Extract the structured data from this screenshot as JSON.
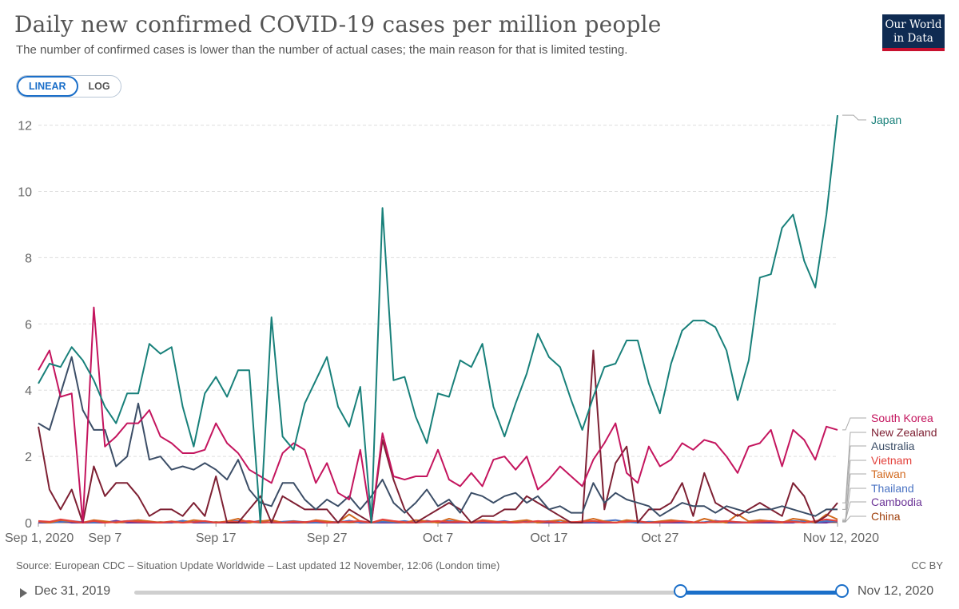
{
  "header": {
    "title": "Daily new confirmed COVID-19 cases per million people",
    "subtitle": "The number of confirmed cases is lower than the number of actual cases; the main reason for that is limited testing.",
    "logo_line1": "Our World",
    "logo_line2": "in Data"
  },
  "scale_toggle": {
    "linear_label": "LINEAR",
    "log_label": "LOG",
    "selected": "LINEAR"
  },
  "footer": {
    "source": "Source: European CDC – Situation Update Worldwide – Last updated 12 November, 12:06 (London time)",
    "license": "CC BY"
  },
  "timeline": {
    "start_label": "Dec 31, 2019",
    "end_label": "Nov 12, 2020"
  },
  "colors": {
    "Japan": "#18807a",
    "South Korea": "#c4155e",
    "New Zealand": "#7e2033",
    "Australia": "#3c4e67",
    "Vietnam": "#e3423c",
    "Taiwan": "#d2691e",
    "Thailand": "#4a73c3",
    "Cambodia": "#6c3597",
    "China": "#a0410e",
    "accent": "#1b6fc9"
  },
  "chart_data": {
    "type": "line",
    "title": "Daily new confirmed COVID-19 cases per million people",
    "xlabel": "",
    "ylabel": "",
    "x_start": "Sep 1, 2020",
    "x_end": "Nov 12, 2020",
    "n_days": 73,
    "xticks": [
      {
        "day": 0,
        "label": "Sep 1, 2020"
      },
      {
        "day": 6,
        "label": "Sep 7"
      },
      {
        "day": 16,
        "label": "Sep 17"
      },
      {
        "day": 26,
        "label": "Sep 27"
      },
      {
        "day": 36,
        "label": "Oct 7"
      },
      {
        "day": 46,
        "label": "Oct 17"
      },
      {
        "day": 56,
        "label": "Oct 27"
      },
      {
        "day": 72,
        "label": "Nov 12, 2020"
      }
    ],
    "yticks": [
      0,
      2,
      4,
      6,
      8,
      10,
      12
    ],
    "ylim": [
      0,
      12.4
    ],
    "grid": true,
    "series": [
      {
        "name": "Japan",
        "values": [
          4.2,
          4.8,
          4.7,
          5.3,
          4.9,
          4.3,
          3.5,
          3.0,
          3.9,
          3.9,
          5.4,
          5.1,
          5.3,
          3.5,
          2.3,
          3.9,
          4.4,
          3.8,
          4.6,
          4.6,
          0.0,
          6.2,
          2.6,
          2.2,
          3.6,
          4.3,
          5.0,
          3.5,
          2.9,
          4.1,
          0.0,
          9.5,
          4.3,
          4.4,
          3.2,
          2.4,
          3.9,
          3.8,
          4.9,
          4.7,
          5.4,
          3.5,
          2.6,
          3.6,
          4.5,
          5.7,
          5.0,
          4.7,
          3.7,
          2.8,
          3.8,
          4.7,
          4.8,
          5.5,
          5.5,
          4.2,
          3.3,
          4.8,
          5.8,
          6.1,
          6.1,
          5.9,
          5.2,
          3.7,
          4.9,
          7.4,
          7.5,
          8.9,
          9.3,
          7.9,
          7.1,
          9.3,
          12.3
        ]
      },
      {
        "name": "South Korea",
        "values": [
          4.6,
          5.2,
          3.8,
          3.9,
          0.0,
          6.5,
          2.3,
          2.6,
          3.0,
          3.0,
          3.4,
          2.6,
          2.4,
          2.1,
          2.1,
          2.2,
          3.0,
          2.4,
          2.1,
          1.6,
          1.4,
          1.2,
          2.1,
          2.4,
          2.2,
          1.2,
          1.8,
          0.9,
          0.7,
          2.2,
          0.0,
          2.7,
          1.4,
          1.3,
          1.4,
          1.4,
          2.2,
          1.3,
          1.1,
          1.5,
          1.1,
          1.9,
          2.0,
          1.6,
          2.0,
          1.0,
          1.3,
          1.7,
          1.4,
          1.1,
          1.9,
          2.4,
          3.0,
          1.5,
          1.2,
          2.3,
          1.7,
          1.9,
          2.4,
          2.2,
          2.5,
          2.4,
          2.0,
          1.5,
          2.3,
          2.4,
          2.8,
          1.7,
          2.8,
          2.5,
          1.9,
          2.9,
          2.8
        ]
      },
      {
        "name": "Australia",
        "values": [
          3.0,
          2.8,
          3.9,
          5.0,
          3.4,
          2.8,
          2.8,
          1.7,
          2.0,
          3.6,
          1.9,
          2.0,
          1.6,
          1.7,
          1.6,
          1.8,
          1.6,
          1.3,
          1.9,
          1.0,
          0.6,
          0.5,
          1.2,
          1.2,
          0.7,
          0.4,
          0.7,
          0.5,
          0.8,
          0.4,
          0.8,
          1.3,
          0.6,
          0.3,
          0.6,
          1.0,
          0.5,
          0.7,
          0.3,
          0.9,
          0.8,
          0.6,
          0.8,
          0.9,
          0.6,
          0.8,
          0.4,
          0.5,
          0.3,
          0.3,
          1.2,
          0.6,
          0.9,
          0.7,
          0.6,
          0.5,
          0.2,
          0.4,
          0.6,
          0.5,
          0.5,
          0.3,
          0.5,
          0.4,
          0.3,
          0.4,
          0.4,
          0.5,
          0.4,
          0.3,
          0.2,
          0.4,
          0.4
        ]
      },
      {
        "name": "New Zealand",
        "values": [
          2.9,
          1.0,
          0.4,
          1.0,
          0.0,
          1.7,
          0.8,
          1.2,
          1.2,
          0.8,
          0.2,
          0.4,
          0.4,
          0.2,
          0.6,
          0.2,
          1.4,
          0.0,
          0.0,
          0.4,
          0.8,
          0.0,
          0.8,
          0.6,
          0.4,
          0.4,
          0.4,
          0.0,
          0.4,
          0.2,
          0.0,
          2.5,
          1.3,
          0.4,
          0.0,
          0.2,
          0.4,
          0.6,
          0.4,
          0.0,
          0.2,
          0.2,
          0.4,
          0.4,
          0.8,
          0.6,
          0.4,
          0.2,
          0.0,
          0.0,
          5.2,
          0.4,
          1.8,
          2.3,
          0.0,
          0.4,
          0.4,
          0.6,
          1.2,
          0.2,
          1.5,
          0.6,
          0.4,
          0.2,
          0.4,
          0.6,
          0.4,
          0.2,
          1.2,
          0.8,
          0.0,
          0.2,
          0.6
        ]
      },
      {
        "name": "Vietnam",
        "values": [
          0.05,
          0.03,
          0.1,
          0.05,
          0.0,
          0.05,
          0.0,
          0.02,
          0.05,
          0.03,
          0.02,
          0.0,
          0.03,
          0.0,
          0.02,
          0.05,
          0.0,
          0.02,
          0.03,
          0.05,
          0.0,
          0.02,
          0.0,
          0.03,
          0.02,
          0.05,
          0.0,
          0.02,
          0.03,
          0.05,
          0.0,
          0.1,
          0.05,
          0.02,
          0.0,
          0.03,
          0.05,
          0.02,
          0.03,
          0.0,
          0.05,
          0.02,
          0.03,
          0.0,
          0.02,
          0.05,
          0.03,
          0.0,
          0.02,
          0.03,
          0.05,
          0.02,
          0.0,
          0.03,
          0.05,
          0.0,
          0.02,
          0.03,
          0.05,
          0.02,
          0.0,
          0.03,
          0.05,
          0.02,
          0.0,
          0.03,
          0.05,
          0.02,
          0.03,
          0.0,
          0.05,
          0.1,
          0.05
        ]
      },
      {
        "name": "Taiwan",
        "values": [
          0.04,
          0.0,
          0.08,
          0.04,
          0.0,
          0.08,
          0.04,
          0.0,
          0.04,
          0.08,
          0.04,
          0.0,
          0.04,
          0.0,
          0.08,
          0.04,
          0.0,
          0.04,
          0.12,
          0.0,
          0.04,
          0.08,
          0.0,
          0.04,
          0.0,
          0.08,
          0.04,
          0.0,
          0.25,
          0.04,
          0.0,
          0.08,
          0.04,
          0.0,
          0.08,
          0.04,
          0.0,
          0.12,
          0.04,
          0.0,
          0.08,
          0.04,
          0.0,
          0.04,
          0.08,
          0.0,
          0.04,
          0.08,
          0.0,
          0.04,
          0.12,
          0.04,
          0.0,
          0.08,
          0.04,
          0.0,
          0.04,
          0.08,
          0.04,
          0.0,
          0.12,
          0.04,
          0.0,
          0.25,
          0.04,
          0.08,
          0.04,
          0.0,
          0.12,
          0.08,
          0.0,
          0.25,
          0.1
        ]
      },
      {
        "name": "Thailand",
        "values": [
          0.03,
          0.0,
          0.02,
          0.05,
          0.02,
          0.0,
          0.03,
          0.02,
          0.05,
          0.08,
          0.03,
          0.0,
          0.02,
          0.05,
          0.03,
          0.02,
          0.0,
          0.03,
          0.05,
          0.02,
          0.0,
          0.02,
          0.03,
          0.05,
          0.02,
          0.0,
          0.03,
          0.02,
          0.05,
          0.02,
          0.0,
          0.03,
          0.02,
          0.05,
          0.0,
          0.02,
          0.03,
          0.05,
          0.02,
          0.0,
          0.03,
          0.02,
          0.05,
          0.0,
          0.02,
          0.03,
          0.05,
          0.02,
          0.0,
          0.03,
          0.02,
          0.05,
          0.08,
          0.02,
          0.0,
          0.03,
          0.02,
          0.05,
          0.03,
          0.0,
          0.02,
          0.05,
          0.03,
          0.02,
          0.0,
          0.03,
          0.05,
          0.02,
          0.05,
          0.03,
          0.0,
          0.05,
          0.03
        ]
      },
      {
        "name": "Cambodia",
        "values": [
          0.0,
          0.0,
          0.06,
          0.0,
          0.0,
          0.0,
          0.0,
          0.06,
          0.0,
          0.0,
          0.0,
          0.0,
          0.0,
          0.06,
          0.0,
          0.0,
          0.0,
          0.0,
          0.0,
          0.0,
          0.06,
          0.0,
          0.0,
          0.0,
          0.0,
          0.0,
          0.0,
          0.0,
          0.06,
          0.0,
          0.0,
          0.0,
          0.0,
          0.0,
          0.0,
          0.06,
          0.0,
          0.0,
          0.0,
          0.0,
          0.0,
          0.0,
          0.0,
          0.0,
          0.06,
          0.0,
          0.0,
          0.0,
          0.0,
          0.0,
          0.0,
          0.0,
          0.0,
          0.06,
          0.0,
          0.0,
          0.0,
          0.0,
          0.0,
          0.0,
          0.0,
          0.06,
          0.0,
          0.0,
          0.0,
          0.0,
          0.0,
          0.0,
          0.0,
          0.06,
          0.0,
          0.0,
          0.06
        ]
      },
      {
        "name": "China",
        "values": [
          0.01,
          0.01,
          0.02,
          0.01,
          0.02,
          0.01,
          0.02,
          0.01,
          0.01,
          0.02,
          0.01,
          0.02,
          0.01,
          0.01,
          0.02,
          0.01,
          0.02,
          0.01,
          0.01,
          0.02,
          0.01,
          0.01,
          0.02,
          0.01,
          0.02,
          0.01,
          0.01,
          0.02,
          0.01,
          0.02,
          0.01,
          0.01,
          0.02,
          0.01,
          0.01,
          0.02,
          0.01,
          0.02,
          0.01,
          0.01,
          0.02,
          0.01,
          0.01,
          0.02,
          0.01,
          0.02,
          0.01,
          0.01,
          0.02,
          0.01,
          0.02,
          0.01,
          0.01,
          0.02,
          0.01,
          0.01,
          0.02,
          0.01,
          0.02,
          0.01,
          0.01,
          0.02,
          0.01,
          0.02,
          0.01,
          0.01,
          0.02,
          0.01,
          0.02,
          0.01,
          0.01,
          0.02,
          0.02
        ]
      }
    ],
    "legend": [
      "Japan",
      "South Korea",
      "New Zealand",
      "Australia",
      "Vietnam",
      "Taiwan",
      "Thailand",
      "Cambodia",
      "China"
    ]
  }
}
